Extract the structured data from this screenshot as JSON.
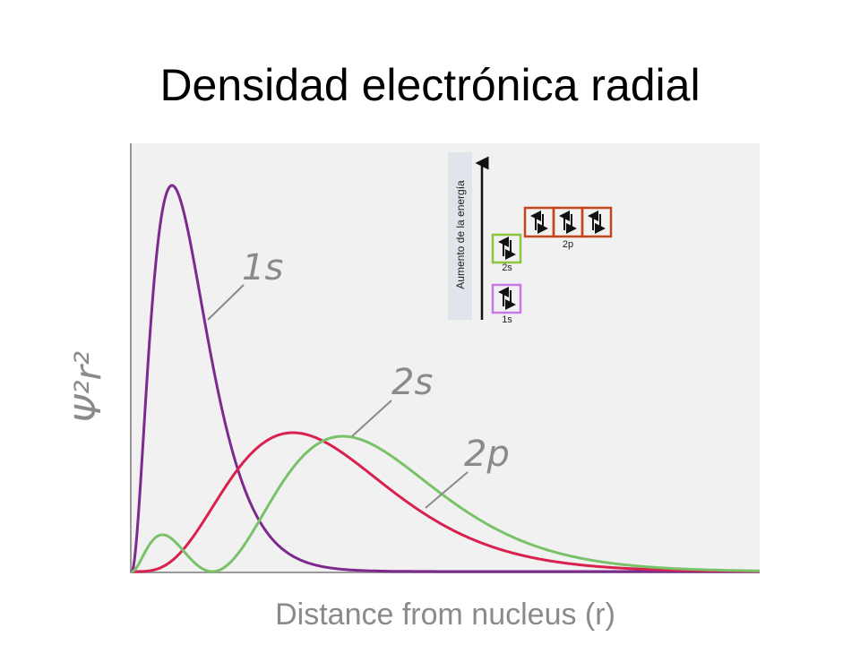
{
  "header": {
    "title": "Densidad electrónica radial"
  },
  "plot": {
    "y_axis_label": "Ψ²r²",
    "x_axis_label": "Distance from nucleus (r)",
    "curve_labels": [
      "1s",
      "2s",
      "2p"
    ]
  },
  "inset": {
    "energy_label": "Aumento de la energía",
    "orbitals": [
      "1s",
      "2s",
      "2p"
    ]
  }
}
